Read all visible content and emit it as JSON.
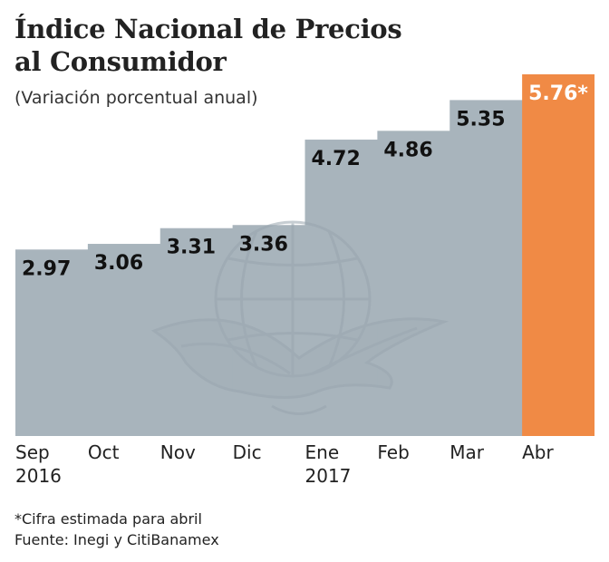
{
  "chart_data": {
    "type": "bar",
    "title": [
      "Índice Nacional de Precios",
      "al Consumidor"
    ],
    "subtitle": "(Variación porcentual anual)",
    "categories": [
      [
        "Sep",
        "2016"
      ],
      [
        "Oct",
        ""
      ],
      [
        "Nov",
        ""
      ],
      [
        "Dic",
        ""
      ],
      [
        "Ene",
        "2017"
      ],
      [
        "Feb",
        ""
      ],
      [
        "Mar",
        ""
      ],
      [
        "Abr",
        ""
      ]
    ],
    "values": [
      2.97,
      3.06,
      3.31,
      3.36,
      4.72,
      4.86,
      5.35,
      5.76
    ],
    "value_labels": [
      "2.97",
      "3.06",
      "3.31",
      "3.36",
      "4.72",
      "4.86",
      "5.35",
      "5.76*"
    ],
    "highlight_index": 7,
    "ylim": [
      0,
      5.76
    ],
    "xlabel": "",
    "ylabel": ""
  },
  "footnotes": {
    "estimate": "*Cifra estimada para abril",
    "source": "Fuente: Inegi y CitiBanamex"
  },
  "colors": {
    "bar": "#a8b4bc",
    "highlight": "#f08a45",
    "watermark": "#98a5ae",
    "text": "#222222"
  }
}
